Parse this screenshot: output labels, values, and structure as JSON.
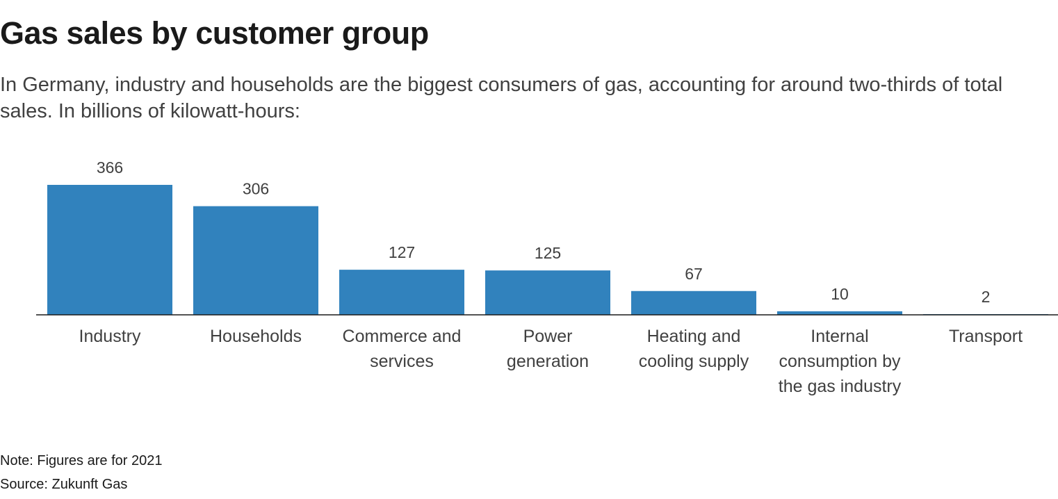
{
  "header": {
    "title": "Gas sales by customer group",
    "subtitle": "In Germany, industry and households are the biggest consumers of gas, accounting for around two-thirds of total sales. In billions of kilowatt-hours:"
  },
  "footer": {
    "note": "Note: Figures are for 2021",
    "source": "Source: Zukunft Gas"
  },
  "colors": {
    "bar": "#3182bd",
    "axis": "#1a1a1a",
    "label": "#404040"
  },
  "chart_data": {
    "type": "bar",
    "title": "Gas sales by customer group",
    "xlabel": "",
    "ylabel": "",
    "ylim": [
      0,
      366
    ],
    "grid": false,
    "categories": [
      [
        "Industry"
      ],
      [
        "Households"
      ],
      [
        "Commerce and",
        "services"
      ],
      [
        "Power",
        "generation"
      ],
      [
        "Heating and",
        "cooling supply"
      ],
      [
        "Internal",
        "consumption by",
        "the gas industry"
      ],
      [
        "Transport"
      ]
    ],
    "values": [
      366,
      306,
      127,
      125,
      67,
      10,
      2
    ]
  }
}
